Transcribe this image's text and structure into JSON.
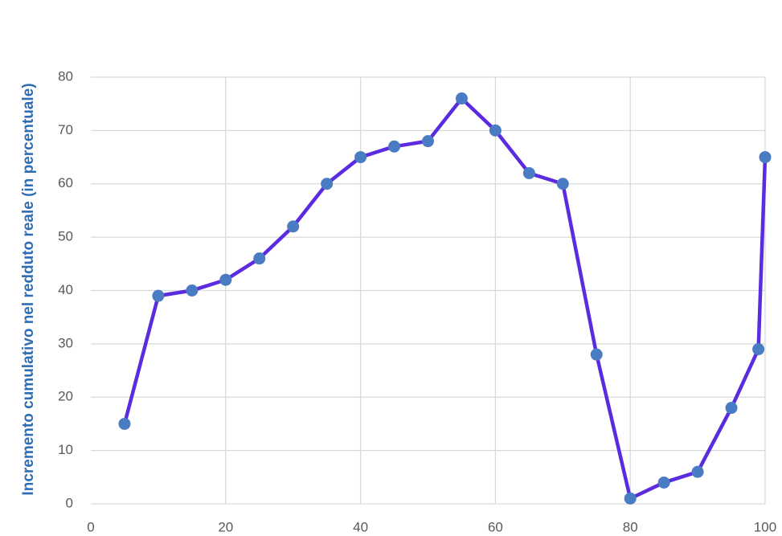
{
  "chart_data": {
    "type": "line",
    "y_label": "Incremento cumulativo nel redduto reale (in percentuale)",
    "x": [
      5,
      10,
      15,
      20,
      25,
      30,
      35,
      40,
      45,
      50,
      55,
      60,
      65,
      70,
      75,
      80,
      85,
      90,
      95,
      99,
      100
    ],
    "series": [
      {
        "color": "#5b2be0",
        "marker_color": "#4a7cc4",
        "values": [
          15,
          39,
          40,
          42,
          46,
          52,
          60,
          65,
          67,
          68,
          76,
          70,
          62,
          60,
          28,
          1,
          4,
          6,
          18,
          29,
          65
        ]
      }
    ],
    "xlim": [
      0,
      100
    ],
    "xticks": [
      0,
      20,
      40,
      60,
      80,
      100
    ],
    "ylim": [
      0,
      80
    ],
    "yticks": [
      0,
      10,
      20,
      30,
      40,
      50,
      60,
      70,
      80
    ],
    "grid": true
  }
}
